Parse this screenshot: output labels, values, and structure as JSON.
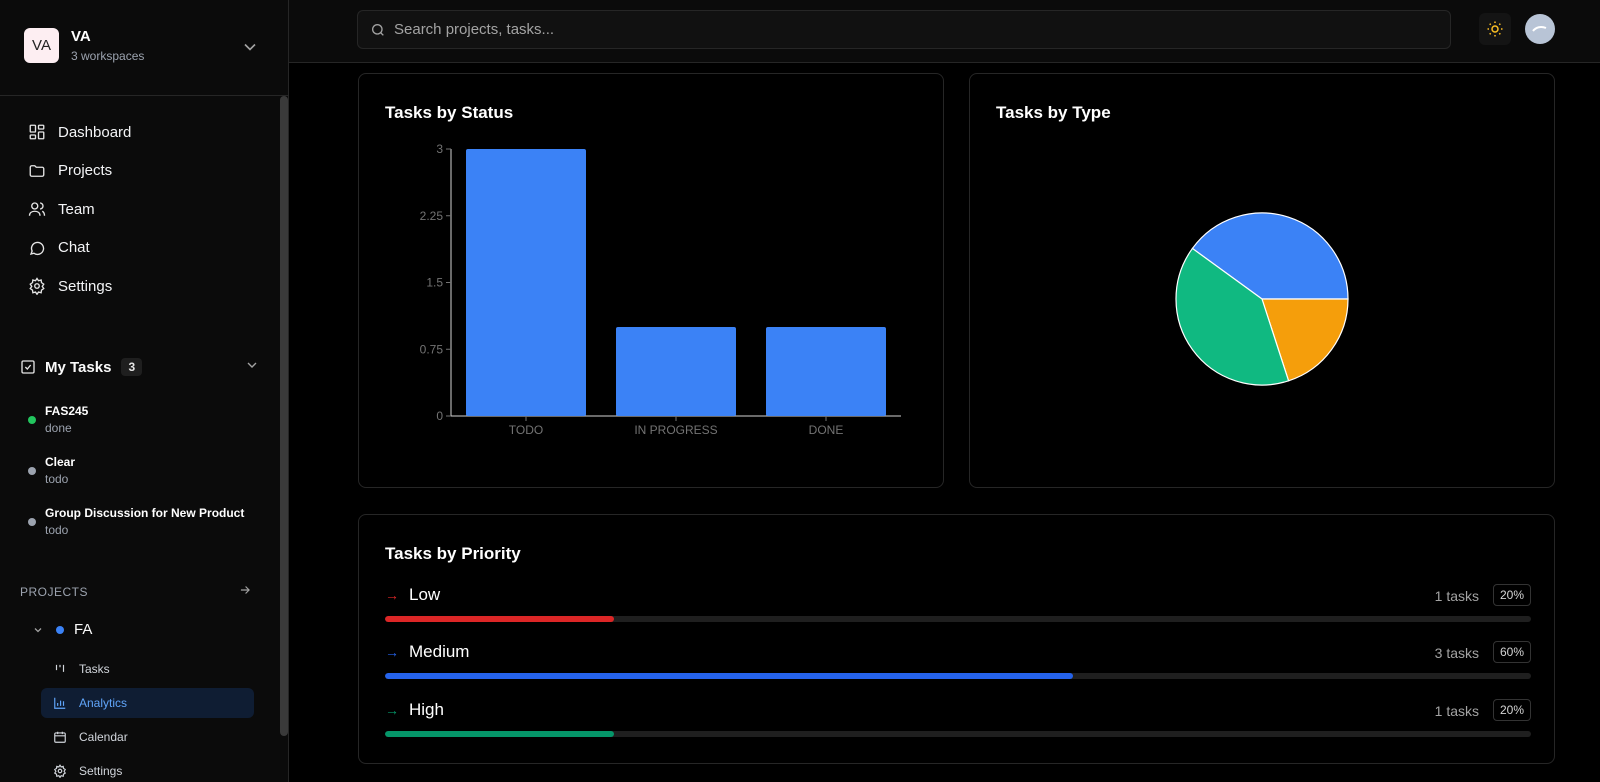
{
  "workspace": {
    "initials": "VA",
    "name": "VA",
    "subtitle": "3 workspaces"
  },
  "nav": [
    {
      "label": "Dashboard",
      "icon": "dashboard-icon"
    },
    {
      "label": "Projects",
      "icon": "folder-icon"
    },
    {
      "label": "Team",
      "icon": "users-icon"
    },
    {
      "label": "Chat",
      "icon": "chat-icon"
    },
    {
      "label": "Settings",
      "icon": "gear-icon"
    }
  ],
  "my_tasks": {
    "label": "My Tasks",
    "count": "3",
    "items": [
      {
        "title": "FAS245",
        "status": "done",
        "color": "#22c55e"
      },
      {
        "title": "Clear",
        "status": "todo",
        "color": "#9ca3af"
      },
      {
        "title": "Group Discussion for New Product",
        "status": "todo",
        "color": "#9ca3af"
      }
    ]
  },
  "projects": {
    "header": "PROJECTS",
    "project": {
      "name": "FA",
      "color": "#3b82f6"
    },
    "subitems": [
      {
        "label": "Tasks",
        "icon": "kanban-icon",
        "active": false
      },
      {
        "label": "Analytics",
        "icon": "bar-chart-icon",
        "active": true
      },
      {
        "label": "Calendar",
        "icon": "calendar-icon",
        "active": false
      },
      {
        "label": "Settings",
        "icon": "gear-icon",
        "active": false
      }
    ]
  },
  "search": {
    "placeholder": "Search projects, tasks..."
  },
  "cards": {
    "status_title": "Tasks by Status",
    "type_title": "Tasks by Type",
    "priority_title": "Tasks by Priority"
  },
  "chart_data": [
    {
      "type": "bar",
      "title": "Tasks by Status",
      "categories": [
        "TODO",
        "IN PROGRESS",
        "DONE"
      ],
      "values": [
        3,
        1,
        1
      ],
      "ylim": [
        0,
        3
      ],
      "yticks": [
        "0",
        "0.75",
        "1.5",
        "2.25",
        "3"
      ],
      "color": "#3b82f6"
    },
    {
      "type": "pie",
      "title": "Tasks by Type",
      "slices": [
        {
          "value": 2,
          "color": "#3b82f6"
        },
        {
          "value": 1,
          "color": "#f59e0b"
        },
        {
          "value": 2,
          "color": "#10b981"
        }
      ]
    }
  ],
  "priorities": [
    {
      "label": "Low",
      "count_text": "1 tasks",
      "pct_text": "20%",
      "fraction": 0.2,
      "color": "#dc2626"
    },
    {
      "label": "Medium",
      "count_text": "3 tasks",
      "pct_text": "60%",
      "fraction": 0.6,
      "color": "#2563eb"
    },
    {
      "label": "High",
      "count_text": "1 tasks",
      "pct_text": "20%",
      "fraction": 0.2,
      "color": "#059669"
    }
  ]
}
